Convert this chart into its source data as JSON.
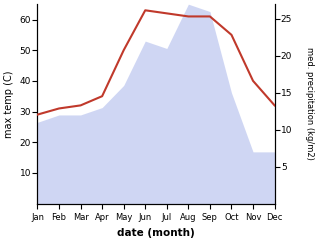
{
  "months": [
    "Jan",
    "Feb",
    "Mar",
    "Apr",
    "May",
    "Jun",
    "Jul",
    "Aug",
    "Sep",
    "Oct",
    "Nov",
    "Dec"
  ],
  "temperature": [
    29,
    31,
    32,
    35,
    50,
    63,
    62,
    61,
    61,
    55,
    40,
    32
  ],
  "precipitation": [
    11,
    12,
    12,
    13,
    16,
    22,
    21,
    27,
    26,
    15,
    7,
    7
  ],
  "temp_color": "#c0392b",
  "precip_fill_color": "#b0bcec",
  "ylabel_left": "max temp (C)",
  "ylabel_right": "med. precipitation (kg/m2)",
  "xlabel": "date (month)",
  "ylim_left": [
    0,
    65
  ],
  "ylim_right": [
    0,
    27
  ],
  "yticks_left": [
    10,
    20,
    30,
    40,
    50,
    60
  ],
  "yticks_right": [
    5,
    10,
    15,
    20,
    25
  ],
  "temp_linewidth": 1.5,
  "precip_alpha": 0.6
}
